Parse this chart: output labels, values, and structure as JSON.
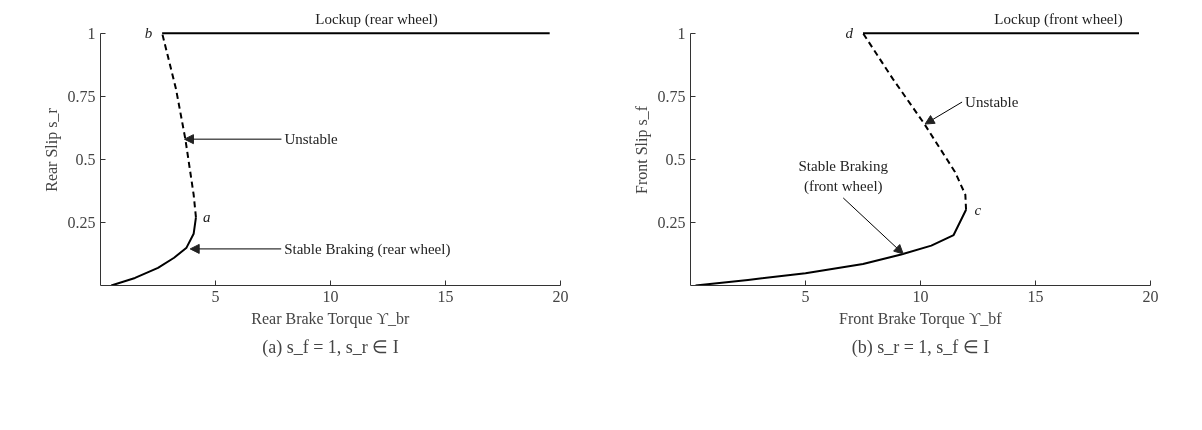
{
  "chart_data": [
    {
      "type": "line",
      "xlabel": "Rear Brake Torque ϒ_br",
      "ylabel": "Rear Slip  s_r",
      "xlim": [
        0,
        20
      ],
      "ylim": [
        0,
        1
      ],
      "xticks": [
        5,
        10,
        15,
        20
      ],
      "yticks": [
        0.25,
        0.5,
        0.75,
        1
      ],
      "grid": false,
      "series": [
        {
          "color": "#000000",
          "line_style": "solid",
          "x": [
            0.47,
            1.5,
            2.5,
            3.2,
            3.74,
            4.05,
            4.15
          ],
          "values": [
            0,
            0.03,
            0.07,
            0.11,
            0.15,
            0.205,
            0.27
          ]
        },
        {
          "color": "#000000",
          "line_style": "dashed",
          "x": [
            4.15,
            4.05,
            3.69,
            3.28,
            2.68
          ],
          "values": [
            0.27,
            0.36,
            0.58,
            0.78,
            1
          ]
        },
        {
          "color": "#000000",
          "line_style": "solid",
          "x": [
            2.68,
            19.53
          ],
          "values": [
            1,
            1
          ]
        }
      ],
      "annotations": [
        {
          "text": "Lockup (rear wheel)",
          "x": 12,
          "y": 1
        },
        {
          "text": "Unstable",
          "x": 3.65,
          "y": 0.58
        },
        {
          "text": "Stable Braking (rear wheel)",
          "x": 3.9,
          "y": 0.145
        },
        {
          "text": "a",
          "x": 4.15,
          "y": 0.27
        },
        {
          "text": "b",
          "x": 2.68,
          "y": 1
        },
        "(a) s_f = 1, s_r ∈ I"
      ]
    },
    {
      "type": "line",
      "xlabel": "Front Brake Torque ϒ_bf",
      "ylabel": "Front Slip  s_f",
      "xlim": [
        0,
        20
      ],
      "ylim": [
        0,
        1
      ],
      "xticks": [
        5,
        10,
        15,
        20
      ],
      "yticks": [
        0.25,
        0.5,
        0.75,
        1
      ],
      "grid": false,
      "series": [
        {
          "color": "#000000",
          "line_style": "solid",
          "x": [
            0.22,
            2.5,
            5,
            7.5,
            9.16,
            10.47,
            11.44,
            11.98
          ],
          "values": [
            0,
            0.022,
            0.049,
            0.085,
            0.123,
            0.158,
            0.2,
            0.3
          ]
        },
        {
          "color": "#000000",
          "line_style": "dashed",
          "x": [
            11.98,
            11.95,
            11.5,
            10.17,
            8.79,
            7.5
          ],
          "values": [
            0.3,
            0.36,
            0.45,
            0.64,
            0.82,
            1
          ]
        },
        {
          "color": "#000000",
          "line_style": "solid",
          "x": [
            7.5,
            19.5
          ],
          "values": [
            1,
            1
          ]
        }
      ],
      "annotations": [
        {
          "text": "Lockup (front wheel)",
          "x": 16,
          "y": 1
        },
        {
          "text": "Unstable",
          "x": 10.2,
          "y": 0.64
        },
        {
          "text": "Stable Braking\n(front wheel)",
          "x": 9.25,
          "y": 0.125
        },
        {
          "text": "c",
          "x": 12.0,
          "y": 0.3
        },
        {
          "text": "d",
          "x": 7.5,
          "y": 1
        },
        "(b) s_r = 1, s_f ∈ I"
      ]
    }
  ]
}
